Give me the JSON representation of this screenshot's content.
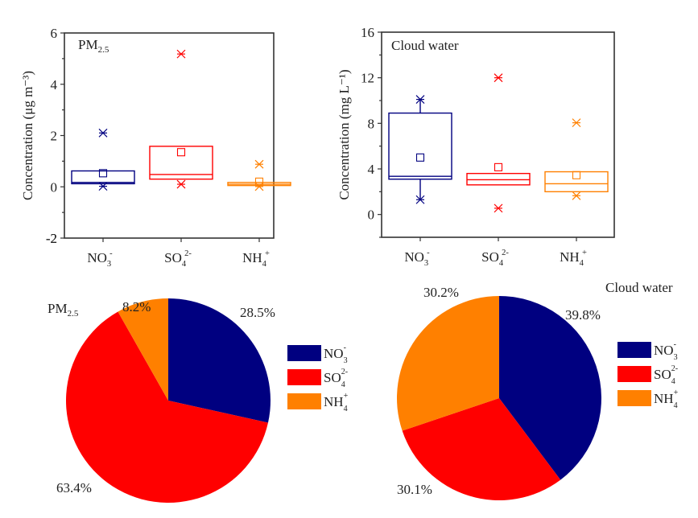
{
  "colors": {
    "no3": "#000080",
    "so4": "#ff0000",
    "nh4": "#ff8000",
    "axis": "#333333"
  },
  "chart_data": [
    {
      "type": "box",
      "title": "PM2.5",
      "title_main": "PM",
      "title_sub": "2.5",
      "ylabel": "Concentration  (μg m⁻³)",
      "ylim": [
        -2,
        6
      ],
      "yticks": [
        "-2",
        "0",
        "2",
        "4",
        "6"
      ],
      "ytick_values": [
        -2,
        0,
        2,
        4,
        6
      ],
      "categories": [
        {
          "base": "NO",
          "sub": "3",
          "sup": "-"
        },
        {
          "base": "SO",
          "sub": "4",
          "sup": "2-"
        },
        {
          "base": "NH",
          "sub": "4",
          "sup": "+"
        }
      ],
      "series": [
        {
          "name": "NO3-",
          "color_key": "no3",
          "q1": 0.12,
          "median": 0.17,
          "q3": 0.62,
          "mean": 0.53,
          "max": 2.1,
          "min": 0.02,
          "whiskers": false
        },
        {
          "name": "SO42-",
          "color_key": "so4",
          "q1": 0.3,
          "median": 0.48,
          "q3": 1.58,
          "mean": 1.35,
          "max": 5.18,
          "min": 0.1,
          "whiskers": false
        },
        {
          "name": "NH4+",
          "color_key": "nh4",
          "q1": 0.05,
          "median": 0.1,
          "q3": 0.17,
          "mean": 0.2,
          "max": 0.88,
          "min": 0.01,
          "whiskers": false
        }
      ]
    },
    {
      "type": "box",
      "title": "Cloud water",
      "ylabel": "Concentration  (mg L⁻¹)",
      "ylim": [
        -2,
        16
      ],
      "yticks": [
        "0",
        "4",
        "8",
        "12",
        "16"
      ],
      "ytick_values": [
        0,
        4,
        8,
        12,
        16
      ],
      "categories": [
        {
          "base": "NO",
          "sub": "3",
          "sup": "-"
        },
        {
          "base": "SO",
          "sub": "4",
          "sup": "2-"
        },
        {
          "base": "NH",
          "sub": "4",
          "sup": "+"
        }
      ],
      "series": [
        {
          "name": "NO3-",
          "color_key": "no3",
          "q1": 3.1,
          "median": 3.35,
          "q3": 8.9,
          "mean": 5.0,
          "max": 10.1,
          "min": 1.3,
          "whiskers": true
        },
        {
          "name": "SO42-",
          "color_key": "so4",
          "q1": 2.6,
          "median": 3.05,
          "q3": 3.6,
          "mean": 4.15,
          "max": 12.0,
          "min": 0.55,
          "whiskers": false
        },
        {
          "name": "NH4+",
          "color_key": "nh4",
          "q1": 2.0,
          "median": 2.7,
          "q3": 3.75,
          "mean": 3.45,
          "max": 8.05,
          "min": 1.65,
          "whiskers": false
        }
      ]
    },
    {
      "type": "pie",
      "title": "PM2.5",
      "title_main": "PM",
      "title_sub": "2.5",
      "slices": [
        {
          "name": "NO3-",
          "value": 28.5,
          "label": "28.5%",
          "color_key": "no3"
        },
        {
          "name": "SO42-",
          "value": 63.4,
          "label": "63.4%",
          "color_key": "so4"
        },
        {
          "name": "NH4+",
          "value": 8.2,
          "label": "8.2%",
          "color_key": "nh4"
        }
      ],
      "legend": [
        {
          "base": "NO",
          "sub": "3",
          "sup": "-",
          "color_key": "no3"
        },
        {
          "base": "SO",
          "sub": "4",
          "sup": "2-",
          "color_key": "so4"
        },
        {
          "base": "NH",
          "sub": "4",
          "sup": "+",
          "color_key": "nh4"
        }
      ],
      "legend_position": "right"
    },
    {
      "type": "pie",
      "title": "Cloud water",
      "slices": [
        {
          "name": "NO3-",
          "value": 39.8,
          "label": "39.8%",
          "color_key": "no3"
        },
        {
          "name": "SO42-",
          "value": 30.1,
          "label": "30.1%",
          "color_key": "so4"
        },
        {
          "name": "NH4+",
          "value": 30.2,
          "label": "30.2%",
          "color_key": "nh4"
        }
      ],
      "legend": [
        {
          "base": "NO",
          "sub": "3",
          "sup": "-",
          "color_key": "no3"
        },
        {
          "base": "SO",
          "sub": "4",
          "sup": "2-",
          "color_key": "so4"
        },
        {
          "base": "NH",
          "sub": "4",
          "sup": "+",
          "color_key": "nh4"
        }
      ],
      "legend_position": "right"
    }
  ]
}
